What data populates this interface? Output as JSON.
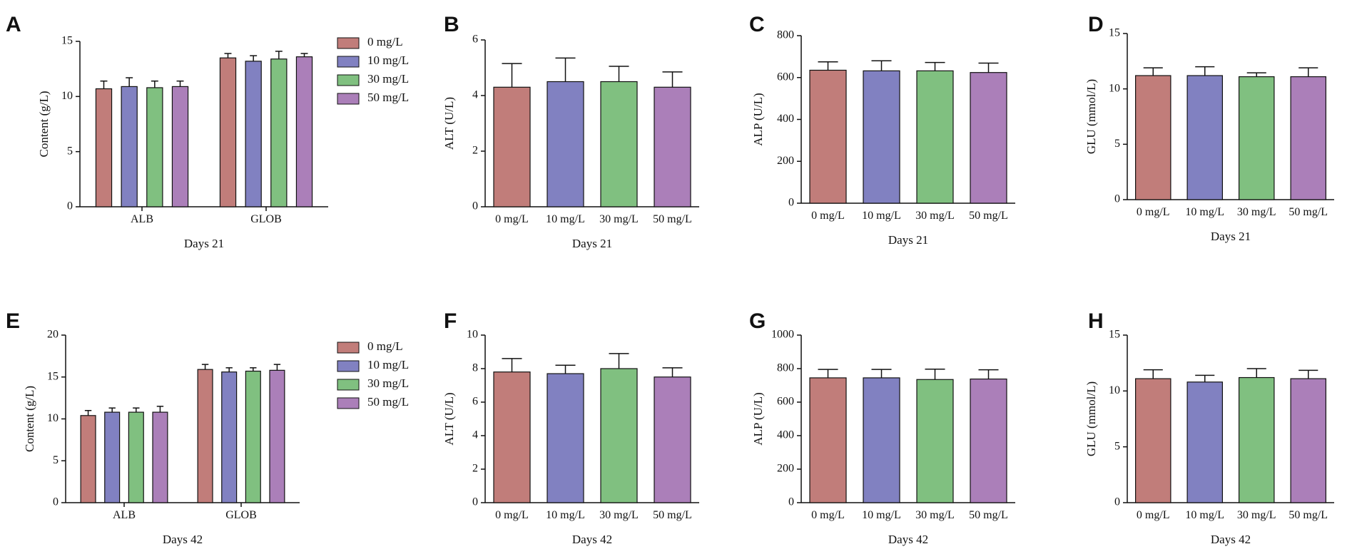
{
  "series_colors": [
    "#c17d7a",
    "#8181c1",
    "#80c080",
    "#ab7fb9"
  ],
  "chart_data": [
    {
      "id": "A",
      "type": "bar",
      "grouped": true,
      "categories": [
        "ALB",
        "GLOB"
      ],
      "series": [
        {
          "name": "0 mg/L",
          "values": [
            10.7,
            13.5
          ],
          "errors": [
            0.7,
            0.4
          ]
        },
        {
          "name": "10 mg/L",
          "values": [
            10.9,
            13.2
          ],
          "errors": [
            0.8,
            0.5
          ]
        },
        {
          "name": "30 mg/L",
          "values": [
            10.8,
            13.4
          ],
          "errors": [
            0.6,
            0.7
          ]
        },
        {
          "name": "50 mg/L",
          "values": [
            10.9,
            13.6
          ],
          "errors": [
            0.5,
            0.3
          ]
        }
      ],
      "ylabel": "Content (g/L)",
      "xlabel": "Days 21",
      "ylim": [
        0,
        15
      ],
      "yticks": [
        0,
        5,
        10,
        15
      ],
      "legend": "right"
    },
    {
      "id": "B",
      "type": "bar",
      "categories": [
        "0 mg/L",
        "10 mg/L",
        "30 mg/L",
        "50 mg/L"
      ],
      "values": [
        4.3,
        4.5,
        4.5,
        4.3
      ],
      "errors": [
        0.85,
        0.85,
        0.55,
        0.55
      ],
      "ylabel": "ALT (U/L)",
      "xlabel": "Days 21",
      "ylim": [
        0,
        6
      ],
      "yticks": [
        0,
        2,
        4,
        6
      ]
    },
    {
      "id": "C",
      "type": "bar",
      "categories": [
        "0 mg/L",
        "10 mg/L",
        "30 mg/L",
        "50 mg/L"
      ],
      "values": [
        635,
        632,
        632,
        624
      ],
      "errors": [
        40,
        48,
        40,
        45
      ],
      "ylabel": "ALP (U/L)",
      "xlabel": "Days 21",
      "ylim": [
        0,
        800
      ],
      "yticks": [
        0,
        200,
        400,
        600,
        800
      ]
    },
    {
      "id": "D",
      "type": "bar",
      "categories": [
        "0 mg/L",
        "10 mg/L",
        "30 mg/L",
        "50 mg/L"
      ],
      "values": [
        11.2,
        11.2,
        11.1,
        11.1
      ],
      "errors": [
        0.7,
        0.8,
        0.35,
        0.8
      ],
      "ylabel": "GLU (mmol/L)",
      "xlabel": "Days 21",
      "ylim": [
        0,
        15
      ],
      "yticks": [
        0,
        5,
        10,
        15
      ]
    },
    {
      "id": "E",
      "type": "bar",
      "grouped": true,
      "categories": [
        "ALB",
        "GLOB"
      ],
      "series": [
        {
          "name": "0 mg/L",
          "values": [
            10.4,
            15.9
          ],
          "errors": [
            0.6,
            0.6
          ]
        },
        {
          "name": "10 mg/L",
          "values": [
            10.8,
            15.6
          ],
          "errors": [
            0.5,
            0.5
          ]
        },
        {
          "name": "30 mg/L",
          "values": [
            10.8,
            15.7
          ],
          "errors": [
            0.5,
            0.4
          ]
        },
        {
          "name": "50 mg/L",
          "values": [
            10.8,
            15.8
          ],
          "errors": [
            0.7,
            0.7
          ]
        }
      ],
      "ylabel": "Content (g/L)",
      "xlabel": "Days 42",
      "ylim": [
        0,
        20
      ],
      "yticks": [
        0,
        5,
        10,
        15,
        20
      ],
      "legend": "right"
    },
    {
      "id": "F",
      "type": "bar",
      "categories": [
        "0 mg/L",
        "10 mg/L",
        "30 mg/L",
        "50 mg/L"
      ],
      "values": [
        7.8,
        7.7,
        8.0,
        7.5
      ],
      "errors": [
        0.8,
        0.5,
        0.9,
        0.55
      ],
      "ylabel": "ALT (U/L)",
      "xlabel": "Days 42",
      "ylim": [
        0,
        10
      ],
      "yticks": [
        0,
        2,
        4,
        6,
        8,
        10
      ]
    },
    {
      "id": "G",
      "type": "bar",
      "categories": [
        "0 mg/L",
        "10 mg/L",
        "30 mg/L",
        "50 mg/L"
      ],
      "values": [
        745,
        745,
        735,
        738
      ],
      "errors": [
        50,
        50,
        62,
        55
      ],
      "ylabel": "ALP (U/L)",
      "xlabel": "Days 42",
      "ylim": [
        0,
        1000
      ],
      "yticks": [
        0,
        200,
        400,
        600,
        800,
        1000
      ]
    },
    {
      "id": "H",
      "type": "bar",
      "categories": [
        "0 mg/L",
        "10 mg/L",
        "30 mg/L",
        "50 mg/L"
      ],
      "values": [
        11.1,
        10.8,
        11.2,
        11.1
      ],
      "errors": [
        0.8,
        0.6,
        0.8,
        0.75
      ],
      "ylabel": "GLU (mmol/L)",
      "xlabel": "Days 42",
      "ylim": [
        0,
        15
      ],
      "yticks": [
        0,
        5,
        10,
        15
      ]
    }
  ]
}
